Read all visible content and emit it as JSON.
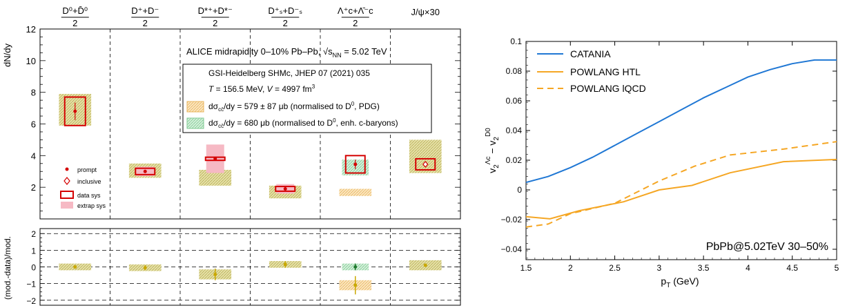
{
  "colors": {
    "data_red": "#d40000",
    "extrap_pink": "#f6b9c4",
    "model_olive": "#d4cf8c",
    "model_olive_dark": "#c9a800",
    "model_orange": "#f6d7a0",
    "model_green": "#b8e6c2",
    "green_point": "#1f7a2e",
    "catania_blue": "#1f77d4",
    "powlang_orange": "#f5a623"
  },
  "chart_data": [
    {
      "type": "scatter",
      "panel": "main",
      "categories": [
        "D0+D0bar/2",
        "D+ + D-/2",
        "D*+ + D*-/2",
        "Ds+ + Ds-/2",
        "Lc+ + Lcbar/2",
        "J/psi x30"
      ],
      "category_labels": [
        {
          "top": "D⁰+D̄⁰",
          "bottom": "2"
        },
        {
          "top": "D⁺+D⁻",
          "bottom": "2"
        },
        {
          "top": "D*⁺+D*⁻",
          "bottom": "2"
        },
        {
          "top": "D⁺ₛ+D⁻ₛ",
          "bottom": "2"
        },
        {
          "top": "Λ⁺c+Λ̄⁻c",
          "bottom": "2"
        },
        {
          "top": "J/ψ×30",
          "bottom": ""
        }
      ],
      "ylabel": "dN/dy",
      "ylim": [
        0,
        12
      ],
      "yticks": [
        2,
        4,
        6,
        8,
        10,
        12
      ],
      "data": [
        {
          "value": 6.8,
          "stat_err": 0.55,
          "sys_err": 0.9,
          "marker": "prompt"
        },
        {
          "value": 3.0,
          "stat_err": 0.1,
          "sys_err": 0.2,
          "extrap_err": 0.3,
          "marker": "prompt"
        },
        {
          "value": 3.8,
          "stat_err": 0.1,
          "sys_err": 0.1,
          "extrap_err": 0.9,
          "marker": "prompt"
        },
        {
          "value": 1.9,
          "stat_err": 0.1,
          "sys_err": 0.15,
          "extrap_err": 0.3,
          "marker": "prompt"
        },
        {
          "value": 3.45,
          "stat_err": 0.3,
          "sys_err": 0.55,
          "marker": "prompt"
        },
        {
          "value": 3.45,
          "stat_err": 0.1,
          "sys_err": 0.35,
          "marker": "inclusive"
        }
      ],
      "model_band_pdg": [
        [
          5.9,
          7.9
        ],
        [
          2.6,
          3.5
        ],
        [
          2.1,
          3.1
        ],
        [
          1.3,
          2.1
        ],
        [
          1.45,
          1.9
        ],
        [
          2.9,
          5.0
        ]
      ],
      "model_band_cbaryons": [
        null,
        null,
        null,
        null,
        [
          2.75,
          3.75
        ],
        null
      ],
      "legend": [
        "prompt",
        "inclusive",
        "data sys",
        "extrap sys"
      ],
      "annotations": {
        "title_line": "ALICE midrapidity 0–10% Pb–Pb, √s",
        "title_sub": "NN",
        "title_tail": " = 5.02 TeV",
        "model_line1": "GSI-Heidelberg SHMc, JHEP 07 (2021) 035",
        "model_line2_a": "T",
        "model_line2_b": " = 156.5 MeV, ",
        "model_line2_c": "V",
        "model_line2_d": " = 4997 fm",
        "model_line2_sup": "3",
        "band1_a": "dσ",
        "band1_sub": "cc̄",
        "band1_b": "/dy = 579 ± 87 μb (normalised to D",
        "band1_sup": "0",
        "band1_c": ", PDG)",
        "band2_a": "dσ",
        "band2_sub": "cc̄",
        "band2_b": "/dy = 680 μb (normalised to D",
        "band2_sup": "0",
        "band2_c": ", enh. c-baryons)"
      }
    },
    {
      "type": "scatter",
      "panel": "ratio",
      "ylabel": "(mod.-data)/mod.",
      "ylim": [
        -2.3,
        2.3
      ],
      "yticks": [
        -2,
        -1,
        0,
        1,
        2
      ],
      "data_pdg": [
        {
          "value": 0.0,
          "err": 0.1,
          "band": 0.2
        },
        {
          "value": -0.05,
          "err": 0.15,
          "band": 0.2
        },
        {
          "value": -0.45,
          "err": 0.35,
          "band": 0.3
        },
        {
          "value": 0.15,
          "err": 0.2,
          "band": 0.2
        },
        {
          "value": -1.1,
          "err": 0.55,
          "band": 0.3
        },
        {
          "value": 0.1,
          "err": 0.1,
          "band": 0.3
        }
      ],
      "data_cbaryons": [
        null,
        null,
        null,
        null,
        {
          "value": 0.0,
          "err": 0.2,
          "band": 0.2
        },
        null
      ]
    },
    {
      "type": "line",
      "panel": "v2",
      "xlabel": "p",
      "xlabel_sub": "T",
      "xlabel_tail": " (GeV)",
      "ylabel_parts": [
        "v",
        "2",
        "Λc",
        " − v",
        "2",
        "D0"
      ],
      "xlim": [
        1.5,
        5
      ],
      "ylim": [
        -0.047,
        0.1
      ],
      "xticks": [
        1.5,
        2,
        2.5,
        3,
        3.5,
        4,
        4.5,
        5
      ],
      "xtick_labels": [
        "1.5",
        "2",
        "2.5",
        "3",
        "3.5",
        "4",
        "4.5",
        "5"
      ],
      "yticks": [
        -0.04,
        -0.02,
        0,
        0.02,
        0.04,
        0.06,
        0.08,
        0.1
      ],
      "ytick_labels": [
        "−0.04",
        "−0.02",
        "0",
        "0.02",
        "0.04",
        "0.06",
        "0.08",
        "0.1"
      ],
      "annotation": "PbPb@5.02TeV 30–50%",
      "series": [
        {
          "name": "CATANIA",
          "style": "solid",
          "color": "#1f77d4",
          "x": [
            1.5,
            1.75,
            2.0,
            2.25,
            2.5,
            2.75,
            3.0,
            3.25,
            3.5,
            3.75,
            4.0,
            4.25,
            4.5,
            4.75,
            5.0
          ],
          "y": [
            0.005,
            0.009,
            0.015,
            0.022,
            0.03,
            0.038,
            0.046,
            0.054,
            0.062,
            0.069,
            0.076,
            0.081,
            0.085,
            0.0875,
            0.0875
          ]
        },
        {
          "name": "POWLANG HTL",
          "style": "solid",
          "color": "#f5a623",
          "x": [
            1.5,
            1.77,
            2.1,
            2.6,
            3.0,
            3.37,
            3.8,
            4.4,
            5.0
          ],
          "y": [
            -0.018,
            -0.0195,
            -0.014,
            -0.008,
            0.0,
            0.003,
            0.0115,
            0.019,
            0.0205
          ]
        },
        {
          "name": "POWLANG lQCD",
          "style": "dashed",
          "color": "#f5a623",
          "x": [
            1.5,
            1.75,
            2.0,
            2.5,
            3.0,
            3.4,
            3.8,
            4.4,
            5.0
          ],
          "y": [
            -0.025,
            -0.023,
            -0.016,
            -0.009,
            0.006,
            0.016,
            0.0235,
            0.0275,
            0.0325
          ]
        }
      ]
    }
  ],
  "legend_labels": {
    "prompt": "prompt",
    "inclusive": "inclusive",
    "data_sys": "data sys",
    "extrap_sys": "extrap sys"
  }
}
